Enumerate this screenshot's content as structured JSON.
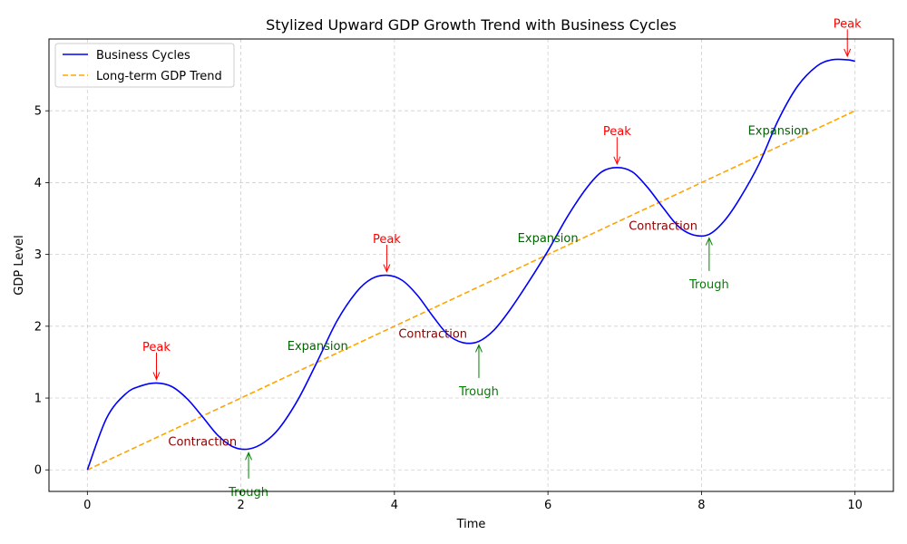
{
  "chart_data": {
    "type": "line",
    "title": "Stylized Upward GDP Growth Trend with Business Cycles",
    "xlabel": "Time",
    "ylabel": "GDP Level",
    "xlim": [
      -0.5,
      10.5
    ],
    "ylim": [
      -0.3,
      6.0
    ],
    "xticks": [
      0,
      2,
      4,
      6,
      8,
      10
    ],
    "yticks": [
      0,
      1,
      2,
      3,
      4,
      5
    ],
    "grid": true,
    "legend_position": "upper-left",
    "series": [
      {
        "name": "Business Cycles",
        "color": "#0000ff",
        "style": "solid",
        "x": [
          0,
          0.25,
          0.5,
          0.7,
          0.9,
          1.1,
          1.3,
          1.5,
          1.7,
          1.9,
          2.1,
          2.3,
          2.5,
          2.75,
          3.0,
          3.25,
          3.5,
          3.7,
          3.9,
          4.1,
          4.3,
          4.5,
          4.7,
          4.9,
          5.1,
          5.3,
          5.5,
          5.75,
          6.0,
          6.25,
          6.5,
          6.7,
          6.9,
          7.1,
          7.3,
          7.5,
          7.7,
          7.9,
          8.1,
          8.3,
          8.5,
          8.75,
          9.0,
          9.25,
          9.5,
          9.7,
          9.9,
          10.0
        ],
        "y": [
          0.0,
          0.72,
          1.06,
          1.17,
          1.21,
          1.16,
          0.99,
          0.74,
          0.48,
          0.32,
          0.29,
          0.38,
          0.58,
          0.99,
          1.52,
          2.07,
          2.47,
          2.66,
          2.71,
          2.64,
          2.43,
          2.14,
          1.88,
          1.77,
          1.79,
          1.95,
          2.22,
          2.62,
          3.05,
          3.52,
          3.92,
          4.15,
          4.21,
          4.15,
          3.93,
          3.65,
          3.39,
          3.27,
          3.28,
          3.47,
          3.78,
          4.26,
          4.87,
          5.34,
          5.62,
          5.71,
          5.71,
          5.69
        ]
      },
      {
        "name": "Long-term GDP Trend",
        "color": "#ffa500",
        "style": "dashed",
        "x": [
          0,
          10
        ],
        "y": [
          0,
          5
        ]
      }
    ],
    "annotations": [
      {
        "text": "Peak",
        "x": 0.9,
        "y": 1.21,
        "tx": 0.9,
        "ty": 1.71,
        "color": "#ff0000",
        "arrow": true
      },
      {
        "text": "Trough",
        "x": 2.1,
        "y": 0.29,
        "tx": 2.1,
        "ty": -0.31,
        "color": "#008000",
        "arrow": true
      },
      {
        "text": "Peak",
        "x": 3.9,
        "y": 2.71,
        "tx": 3.9,
        "ty": 3.21,
        "color": "#ff0000",
        "arrow": true
      },
      {
        "text": "Trough",
        "x": 5.1,
        "y": 1.79,
        "tx": 5.1,
        "ty": 1.09,
        "color": "#008000",
        "arrow": true
      },
      {
        "text": "Peak",
        "x": 6.9,
        "y": 4.21,
        "tx": 6.9,
        "ty": 4.71,
        "color": "#ff0000",
        "arrow": true
      },
      {
        "text": "Trough",
        "x": 8.1,
        "y": 3.28,
        "tx": 8.1,
        "ty": 2.58,
        "color": "#008000",
        "arrow": true
      },
      {
        "text": "Peak",
        "x": 9.9,
        "y": 5.71,
        "tx": 9.9,
        "ty": 6.21,
        "color": "#ff0000",
        "arrow": true
      },
      {
        "text": "Contraction",
        "x": 1.5,
        "y": 0.39,
        "color": "#8b0000",
        "arrow": false
      },
      {
        "text": "Expansion",
        "x": 3.0,
        "y": 1.72,
        "color": "#006400",
        "arrow": false
      },
      {
        "text": "Contraction",
        "x": 4.5,
        "y": 1.89,
        "color": "#8b0000",
        "arrow": false
      },
      {
        "text": "Expansion",
        "x": 6.0,
        "y": 3.22,
        "color": "#006400",
        "arrow": false
      },
      {
        "text": "Contraction",
        "x": 7.5,
        "y": 3.39,
        "color": "#8b0000",
        "arrow": false
      },
      {
        "text": "Expansion",
        "x": 9.0,
        "y": 4.72,
        "color": "#006400",
        "arrow": false
      }
    ]
  }
}
